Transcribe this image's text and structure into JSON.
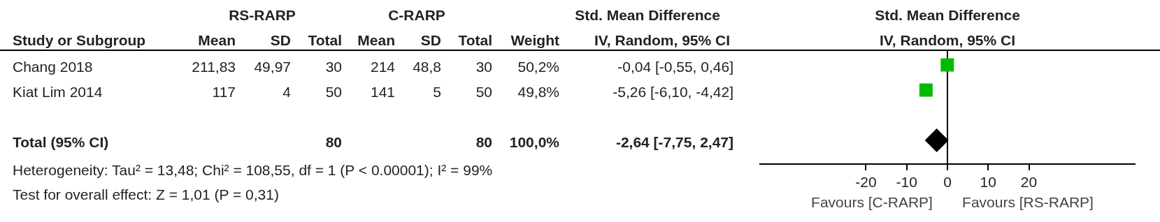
{
  "chart_data": [
    {
      "type": "other",
      "annotations": [
        "RS-RARP",
        "C-RARP",
        "Std. Mean Difference",
        "Study or Subgroup",
        "Mean",
        "SD",
        "Total",
        "Mean",
        "SD",
        "Total",
        "Weight",
        "IV, Random, 95% CI",
        "Chang 2018",
        "211,83",
        "49,97",
        "30",
        "214",
        "48,8",
        "30",
        "50,2%",
        "-0,04 [-0,55, 0,46]",
        "Kiat Lim 2014",
        "117",
        "4",
        "50",
        "141",
        "5",
        "50",
        "49,8%",
        "-5,26 [-6,10, -4,42]",
        "Total (95% CI)",
        "80",
        "80",
        "100,0%",
        "-2,64 [-7,75, 2,47]",
        "Heterogeneity: Tau² = 13,48; Chi² = 108,55, df = 1 (P < 0.00001); I² = 99%",
        "Test for overall effect: Z = 1,01 (P = 0,31)"
      ]
    },
    {
      "type": "scatter",
      "title": "Std. Mean Difference",
      "subtitle": "IV, Random, 95% CI",
      "categories": [
        null,
        null,
        null,
        null
      ],
      "series": [
        {
          "marker": "square",
          "color": "#00bb00",
          "values": [
            -0.04,
            -5.26,
            null,
            null
          ]
        },
        {
          "marker": "diamond",
          "color": "#000000",
          "values": [
            null,
            null,
            null,
            -2.64
          ]
        }
      ],
      "orientation": "horizontal",
      "xlim": [
        -46,
        46
      ],
      "xticks": [
        -20,
        -10,
        0,
        10,
        20
      ],
      "ref_lines": [
        {
          "axis": "x",
          "value": 0,
          "color": "#000000"
        }
      ],
      "annotations": [
        "Favours [C-RARP]",
        "Favours [RS-RARP]"
      ]
    }
  ]
}
